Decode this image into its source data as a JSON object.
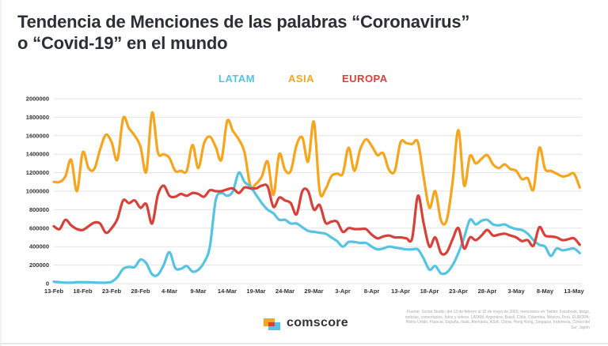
{
  "title_line1": "Tendencia de Menciones de las palabras “Coronavirus”",
  "title_line2": "o “Covid-19” en el mundo",
  "colors": {
    "LATAM": "#55c4e2",
    "ASIA": "#f6a51d",
    "EUROPA": "#d8403a",
    "title": "#2b3036"
  },
  "brand": {
    "name": "comscore",
    "icon": "comscore-logo-icon"
  },
  "source_note": "Fuente: Social Studio, del 13 de febrero al 15 de mayo de 2020, menciones en Twitter, Facebook, blogs, noticias, comentarios, fotos y videos. LATAM: Argentina, Brasil, Chile, Colombia, México, Perú. EUROPA: Reino Unido, Francia, España, Italia, Alemania. ASIA: China, Hong Kong, Singapur, Indonesia, Corea del Sur, Japón",
  "chart_data": {
    "type": "line",
    "title": "Tendencia de Menciones de las palabras “Coronavirus” o “Covid-19” en el mundo",
    "xlabel": "",
    "ylabel": "",
    "ylim": [
      0,
      2000000
    ],
    "yticks": [
      "0",
      "200000",
      "400000",
      "600000",
      "800000",
      "1000000",
      "1200000",
      "1400000",
      "1600000",
      "1800000",
      "2000000"
    ],
    "xticks": [
      "13-Feb",
      "18-Feb",
      "23-Feb",
      "28-Feb",
      "4-Mar",
      "9-Mar",
      "14-Mar",
      "19-Mar",
      "24-Mar",
      "29-Mar",
      "3-Apr",
      "8-Apr",
      "13-Apr",
      "18-Apr",
      "23-Apr",
      "28-Apr",
      "3-May",
      "8-May",
      "13-May"
    ],
    "grid": "horizontal",
    "legend_position": "top-center",
    "x": [
      "13-Feb",
      "14-Feb",
      "15-Feb",
      "16-Feb",
      "17-Feb",
      "18-Feb",
      "19-Feb",
      "20-Feb",
      "21-Feb",
      "22-Feb",
      "23-Feb",
      "24-Feb",
      "25-Feb",
      "26-Feb",
      "27-Feb",
      "28-Feb",
      "29-Feb",
      "1-Mar",
      "2-Mar",
      "3-Mar",
      "4-Mar",
      "5-Mar",
      "6-Mar",
      "7-Mar",
      "8-Mar",
      "9-Mar",
      "10-Mar",
      "11-Mar",
      "12-Mar",
      "13-Mar",
      "14-Mar",
      "15-Mar",
      "16-Mar",
      "17-Mar",
      "18-Mar",
      "19-Mar",
      "20-Mar",
      "21-Mar",
      "22-Mar",
      "23-Mar",
      "24-Mar",
      "25-Mar",
      "26-Mar",
      "27-Mar",
      "28-Mar",
      "29-Mar",
      "30-Mar",
      "31-Mar",
      "1-Apr",
      "2-Apr",
      "3-Apr",
      "4-Apr",
      "5-Apr",
      "6-Apr",
      "7-Apr",
      "8-Apr",
      "9-Apr",
      "10-Apr",
      "11-Apr",
      "12-Apr",
      "13-Apr",
      "14-Apr",
      "15-Apr",
      "16-Apr",
      "17-Apr",
      "18-Apr",
      "19-Apr",
      "20-Apr",
      "21-Apr",
      "22-Apr",
      "23-Apr",
      "24-Apr",
      "25-Apr",
      "26-Apr",
      "27-Apr",
      "28-Apr",
      "29-Apr",
      "30-Apr",
      "1-May",
      "2-May",
      "3-May",
      "4-May",
      "5-May",
      "6-May",
      "7-May",
      "8-May",
      "9-May",
      "10-May",
      "11-May",
      "12-May",
      "13-May",
      "14-May"
    ],
    "series": [
      {
        "name": "LATAM",
        "values": [
          20000,
          15000,
          10000,
          10000,
          15000,
          15000,
          15000,
          12000,
          10000,
          10000,
          20000,
          70000,
          160000,
          180000,
          180000,
          260000,
          220000,
          100000,
          95000,
          200000,
          340000,
          170000,
          160000,
          190000,
          130000,
          150000,
          230000,
          400000,
          900000,
          980000,
          950000,
          1000000,
          1200000,
          1100000,
          1050000,
          960000,
          870000,
          800000,
          760000,
          690000,
          690000,
          650000,
          650000,
          610000,
          570000,
          560000,
          550000,
          540000,
          500000,
          460000,
          400000,
          450000,
          450000,
          440000,
          440000,
          400000,
          370000,
          380000,
          400000,
          390000,
          380000,
          370000,
          370000,
          370000,
          270000,
          150000,
          190000,
          110000,
          120000,
          200000,
          330000,
          500000,
          690000,
          640000,
          680000,
          690000,
          640000,
          630000,
          640000,
          610000,
          590000,
          580000,
          540000,
          470000,
          420000,
          400000,
          300000,
          380000,
          360000,
          370000,
          380000,
          330000
        ]
      },
      {
        "name": "ASIA",
        "values": [
          1100000,
          1100000,
          1160000,
          1340000,
          1000000,
          1420000,
          1250000,
          1240000,
          1450000,
          1610000,
          1530000,
          1340000,
          1790000,
          1680000,
          1600000,
          1480000,
          1210000,
          1850000,
          1420000,
          1400000,
          1360000,
          1220000,
          1220000,
          1220000,
          1500000,
          1250000,
          1520000,
          1590000,
          1480000,
          1340000,
          1760000,
          1650000,
          1560000,
          1420000,
          1060000,
          1080000,
          1160000,
          1320000,
          960000,
          1400000,
          1230000,
          1220000,
          1500000,
          1580000,
          1320000,
          1750000,
          1000000,
          1020000,
          1160000,
          1190000,
          1190000,
          1470000,
          1220000,
          1450000,
          1560000,
          1490000,
          1390000,
          1410000,
          1230000,
          1220000,
          1530000,
          1520000,
          1510000,
          1530000,
          1150000,
          820000,
          1000000,
          680000,
          690000,
          1100000,
          1660000,
          1060000,
          1380000,
          1300000,
          1350000,
          1390000,
          1290000,
          1250000,
          1290000,
          1240000,
          1220000,
          1130000,
          1140000,
          1020000,
          1470000,
          1240000,
          1220000,
          1190000,
          1160000,
          1170000,
          1190000,
          1040000
        ]
      },
      {
        "name": "EUROPA",
        "values": [
          620000,
          590000,
          690000,
          630000,
          590000,
          580000,
          620000,
          660000,
          650000,
          550000,
          600000,
          700000,
          900000,
          870000,
          900000,
          820000,
          860000,
          650000,
          960000,
          1060000,
          950000,
          940000,
          970000,
          950000,
          980000,
          970000,
          940000,
          1010000,
          1000000,
          1000000,
          1020000,
          1030000,
          980000,
          1040000,
          1030000,
          1030000,
          1060000,
          1050000,
          830000,
          930000,
          900000,
          870000,
          750000,
          1000000,
          1000000,
          800000,
          850000,
          660000,
          670000,
          670000,
          560000,
          600000,
          590000,
          590000,
          590000,
          530000,
          490000,
          510000,
          520000,
          500000,
          500000,
          490000,
          490000,
          950000,
          650000,
          400000,
          500000,
          330000,
          340000,
          480000,
          600000,
          380000,
          500000,
          470000,
          520000,
          580000,
          520000,
          530000,
          540000,
          520000,
          500000,
          460000,
          470000,
          410000,
          610000,
          520000,
          510000,
          500000,
          470000,
          480000,
          490000,
          420000
        ]
      }
    ]
  }
}
